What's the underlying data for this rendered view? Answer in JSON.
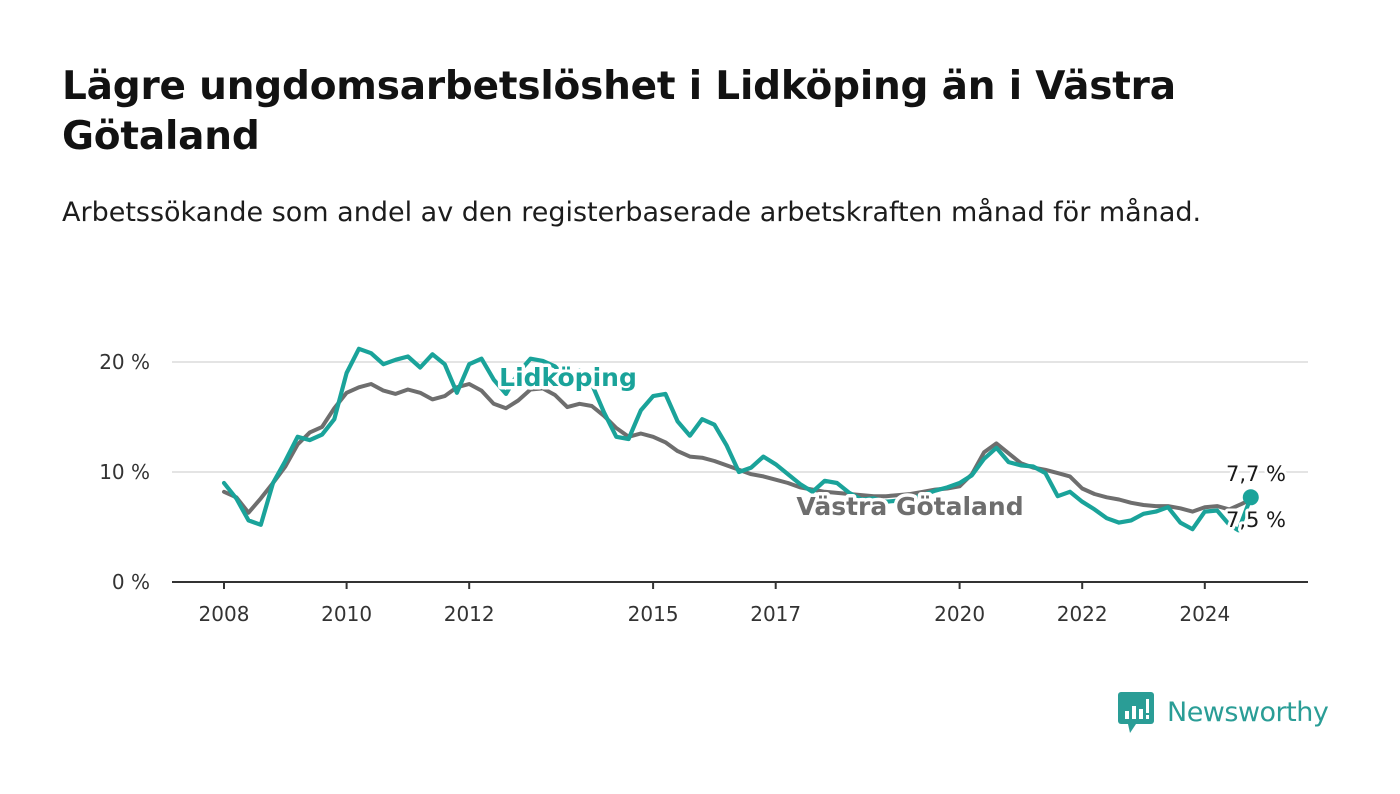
{
  "title": "Lägre ungdomsarbetslöshet i Lidköping än i Västra Götaland",
  "subtitle": "Arbetssökande som andel av den registerbaserade arbetskraften månad för månad.",
  "brand": {
    "name": "Newsworthy",
    "color": "#2a9d96"
  },
  "chart_data": {
    "type": "line",
    "title": "Lägre ungdomsarbetslöshet i Lidköping än i Västra Götaland",
    "subtitle": "Arbetssökande som andel av den registerbaserade arbetskraften månad för månad.",
    "xlabel": "",
    "ylabel": "",
    "x_range": [
      2008.0,
      2024.75
    ],
    "ylim": [
      0,
      22
    ],
    "y_ticks": [
      0,
      10,
      20
    ],
    "y_tick_labels": [
      "0 %",
      "10 %",
      "20 %"
    ],
    "x_ticks": [
      2008,
      2010,
      2012,
      2015,
      2017,
      2020,
      2022,
      2024
    ],
    "x_tick_labels": [
      "2008",
      "2010",
      "2012",
      "2015",
      "2017",
      "2020",
      "2022",
      "2024"
    ],
    "grid": true,
    "series": [
      {
        "name": "Västra Götaland",
        "color": "#6e6e6e",
        "end_label": "7,5 %",
        "points": [
          [
            2008.0,
            8.2
          ],
          [
            2008.2,
            7.7
          ],
          [
            2008.4,
            6.3
          ],
          [
            2008.6,
            7.6
          ],
          [
            2008.8,
            9.0
          ],
          [
            2009.0,
            10.5
          ],
          [
            2009.2,
            12.5
          ],
          [
            2009.4,
            13.6
          ],
          [
            2009.6,
            14.1
          ],
          [
            2009.8,
            15.8
          ],
          [
            2010.0,
            17.2
          ],
          [
            2010.2,
            17.7
          ],
          [
            2010.4,
            18.0
          ],
          [
            2010.6,
            17.4
          ],
          [
            2010.8,
            17.1
          ],
          [
            2011.0,
            17.5
          ],
          [
            2011.2,
            17.2
          ],
          [
            2011.4,
            16.6
          ],
          [
            2011.6,
            16.9
          ],
          [
            2011.8,
            17.7
          ],
          [
            2012.0,
            18.0
          ],
          [
            2012.2,
            17.4
          ],
          [
            2012.4,
            16.2
          ],
          [
            2012.6,
            15.8
          ],
          [
            2012.8,
            16.5
          ],
          [
            2013.0,
            17.5
          ],
          [
            2013.2,
            17.6
          ],
          [
            2013.4,
            17.0
          ],
          [
            2013.6,
            15.9
          ],
          [
            2013.8,
            16.2
          ],
          [
            2014.0,
            16.0
          ],
          [
            2014.2,
            15.1
          ],
          [
            2014.4,
            14.0
          ],
          [
            2014.6,
            13.2
          ],
          [
            2014.8,
            13.5
          ],
          [
            2015.0,
            13.2
          ],
          [
            2015.2,
            12.7
          ],
          [
            2015.4,
            11.9
          ],
          [
            2015.6,
            11.4
          ],
          [
            2015.8,
            11.3
          ],
          [
            2016.0,
            11.0
          ],
          [
            2016.2,
            10.6
          ],
          [
            2016.4,
            10.2
          ],
          [
            2016.6,
            9.8
          ],
          [
            2016.8,
            9.6
          ],
          [
            2017.0,
            9.3
          ],
          [
            2017.2,
            9.0
          ],
          [
            2017.4,
            8.6
          ],
          [
            2017.6,
            8.4
          ],
          [
            2017.8,
            8.2
          ],
          [
            2018.0,
            8.1
          ],
          [
            2018.2,
            8.0
          ],
          [
            2018.4,
            7.9
          ],
          [
            2018.6,
            7.8
          ],
          [
            2018.8,
            7.8
          ],
          [
            2019.0,
            7.9
          ],
          [
            2019.2,
            8.0
          ],
          [
            2019.4,
            8.2
          ],
          [
            2019.6,
            8.4
          ],
          [
            2019.8,
            8.5
          ],
          [
            2020.0,
            8.7
          ],
          [
            2020.2,
            9.8
          ],
          [
            2020.4,
            11.8
          ],
          [
            2020.6,
            12.6
          ],
          [
            2020.8,
            11.7
          ],
          [
            2021.0,
            10.8
          ],
          [
            2021.2,
            10.4
          ],
          [
            2021.4,
            10.2
          ],
          [
            2021.6,
            9.9
          ],
          [
            2021.8,
            9.6
          ],
          [
            2022.0,
            8.5
          ],
          [
            2022.2,
            8.0
          ],
          [
            2022.4,
            7.7
          ],
          [
            2022.6,
            7.5
          ],
          [
            2022.8,
            7.2
          ],
          [
            2023.0,
            7.0
          ],
          [
            2023.2,
            6.9
          ],
          [
            2023.4,
            6.9
          ],
          [
            2023.6,
            6.7
          ],
          [
            2023.8,
            6.4
          ],
          [
            2024.0,
            6.8
          ],
          [
            2024.2,
            6.9
          ],
          [
            2024.4,
            6.6
          ],
          [
            2024.6,
            7.1
          ],
          [
            2024.75,
            7.5
          ]
        ]
      },
      {
        "name": "Lidköping",
        "color": "#1aa39a",
        "end_label": "7,7 %",
        "points": [
          [
            2008.0,
            9.0
          ],
          [
            2008.2,
            7.6
          ],
          [
            2008.4,
            5.6
          ],
          [
            2008.6,
            5.2
          ],
          [
            2008.8,
            9.0
          ],
          [
            2009.0,
            11.0
          ],
          [
            2009.2,
            13.2
          ],
          [
            2009.4,
            12.9
          ],
          [
            2009.6,
            13.4
          ],
          [
            2009.8,
            14.8
          ],
          [
            2010.0,
            19.0
          ],
          [
            2010.2,
            21.2
          ],
          [
            2010.4,
            20.8
          ],
          [
            2010.6,
            19.8
          ],
          [
            2010.8,
            20.2
          ],
          [
            2011.0,
            20.5
          ],
          [
            2011.2,
            19.5
          ],
          [
            2011.4,
            20.7
          ],
          [
            2011.6,
            19.8
          ],
          [
            2011.8,
            17.2
          ],
          [
            2012.0,
            19.8
          ],
          [
            2012.2,
            20.3
          ],
          [
            2012.4,
            18.4
          ],
          [
            2012.6,
            17.1
          ],
          [
            2012.8,
            19.0
          ],
          [
            2013.0,
            20.3
          ],
          [
            2013.2,
            20.1
          ],
          [
            2013.4,
            19.6
          ],
          [
            2013.6,
            18.4
          ],
          [
            2013.8,
            19.2
          ],
          [
            2014.0,
            18.0
          ],
          [
            2014.2,
            15.4
          ],
          [
            2014.4,
            13.2
          ],
          [
            2014.6,
            13.0
          ],
          [
            2014.8,
            15.6
          ],
          [
            2015.0,
            16.9
          ],
          [
            2015.2,
            17.1
          ],
          [
            2015.4,
            14.6
          ],
          [
            2015.6,
            13.3
          ],
          [
            2015.8,
            14.8
          ],
          [
            2016.0,
            14.3
          ],
          [
            2016.2,
            12.4
          ],
          [
            2016.4,
            10.0
          ],
          [
            2016.6,
            10.4
          ],
          [
            2016.8,
            11.4
          ],
          [
            2017.0,
            10.7
          ],
          [
            2017.2,
            9.8
          ],
          [
            2017.4,
            8.9
          ],
          [
            2017.6,
            8.2
          ],
          [
            2017.8,
            9.2
          ],
          [
            2018.0,
            9.0
          ],
          [
            2018.2,
            8.1
          ],
          [
            2018.4,
            7.5
          ],
          [
            2018.6,
            7.6
          ],
          [
            2018.8,
            7.3
          ],
          [
            2019.0,
            7.4
          ],
          [
            2019.2,
            7.6
          ],
          [
            2019.4,
            7.9
          ],
          [
            2019.6,
            8.3
          ],
          [
            2019.8,
            8.6
          ],
          [
            2020.0,
            9.0
          ],
          [
            2020.2,
            9.7
          ],
          [
            2020.4,
            11.2
          ],
          [
            2020.6,
            12.2
          ],
          [
            2020.8,
            10.9
          ],
          [
            2021.0,
            10.6
          ],
          [
            2021.2,
            10.5
          ],
          [
            2021.4,
            9.9
          ],
          [
            2021.6,
            7.8
          ],
          [
            2021.8,
            8.2
          ],
          [
            2022.0,
            7.3
          ],
          [
            2022.2,
            6.6
          ],
          [
            2022.4,
            5.8
          ],
          [
            2022.6,
            5.4
          ],
          [
            2022.8,
            5.6
          ],
          [
            2023.0,
            6.2
          ],
          [
            2023.2,
            6.4
          ],
          [
            2023.4,
            6.8
          ],
          [
            2023.6,
            5.4
          ],
          [
            2023.8,
            4.8
          ],
          [
            2024.0,
            6.4
          ],
          [
            2024.2,
            6.5
          ],
          [
            2024.4,
            5.2
          ],
          [
            2024.55,
            4.7
          ],
          [
            2024.75,
            7.7
          ]
        ]
      }
    ]
  }
}
